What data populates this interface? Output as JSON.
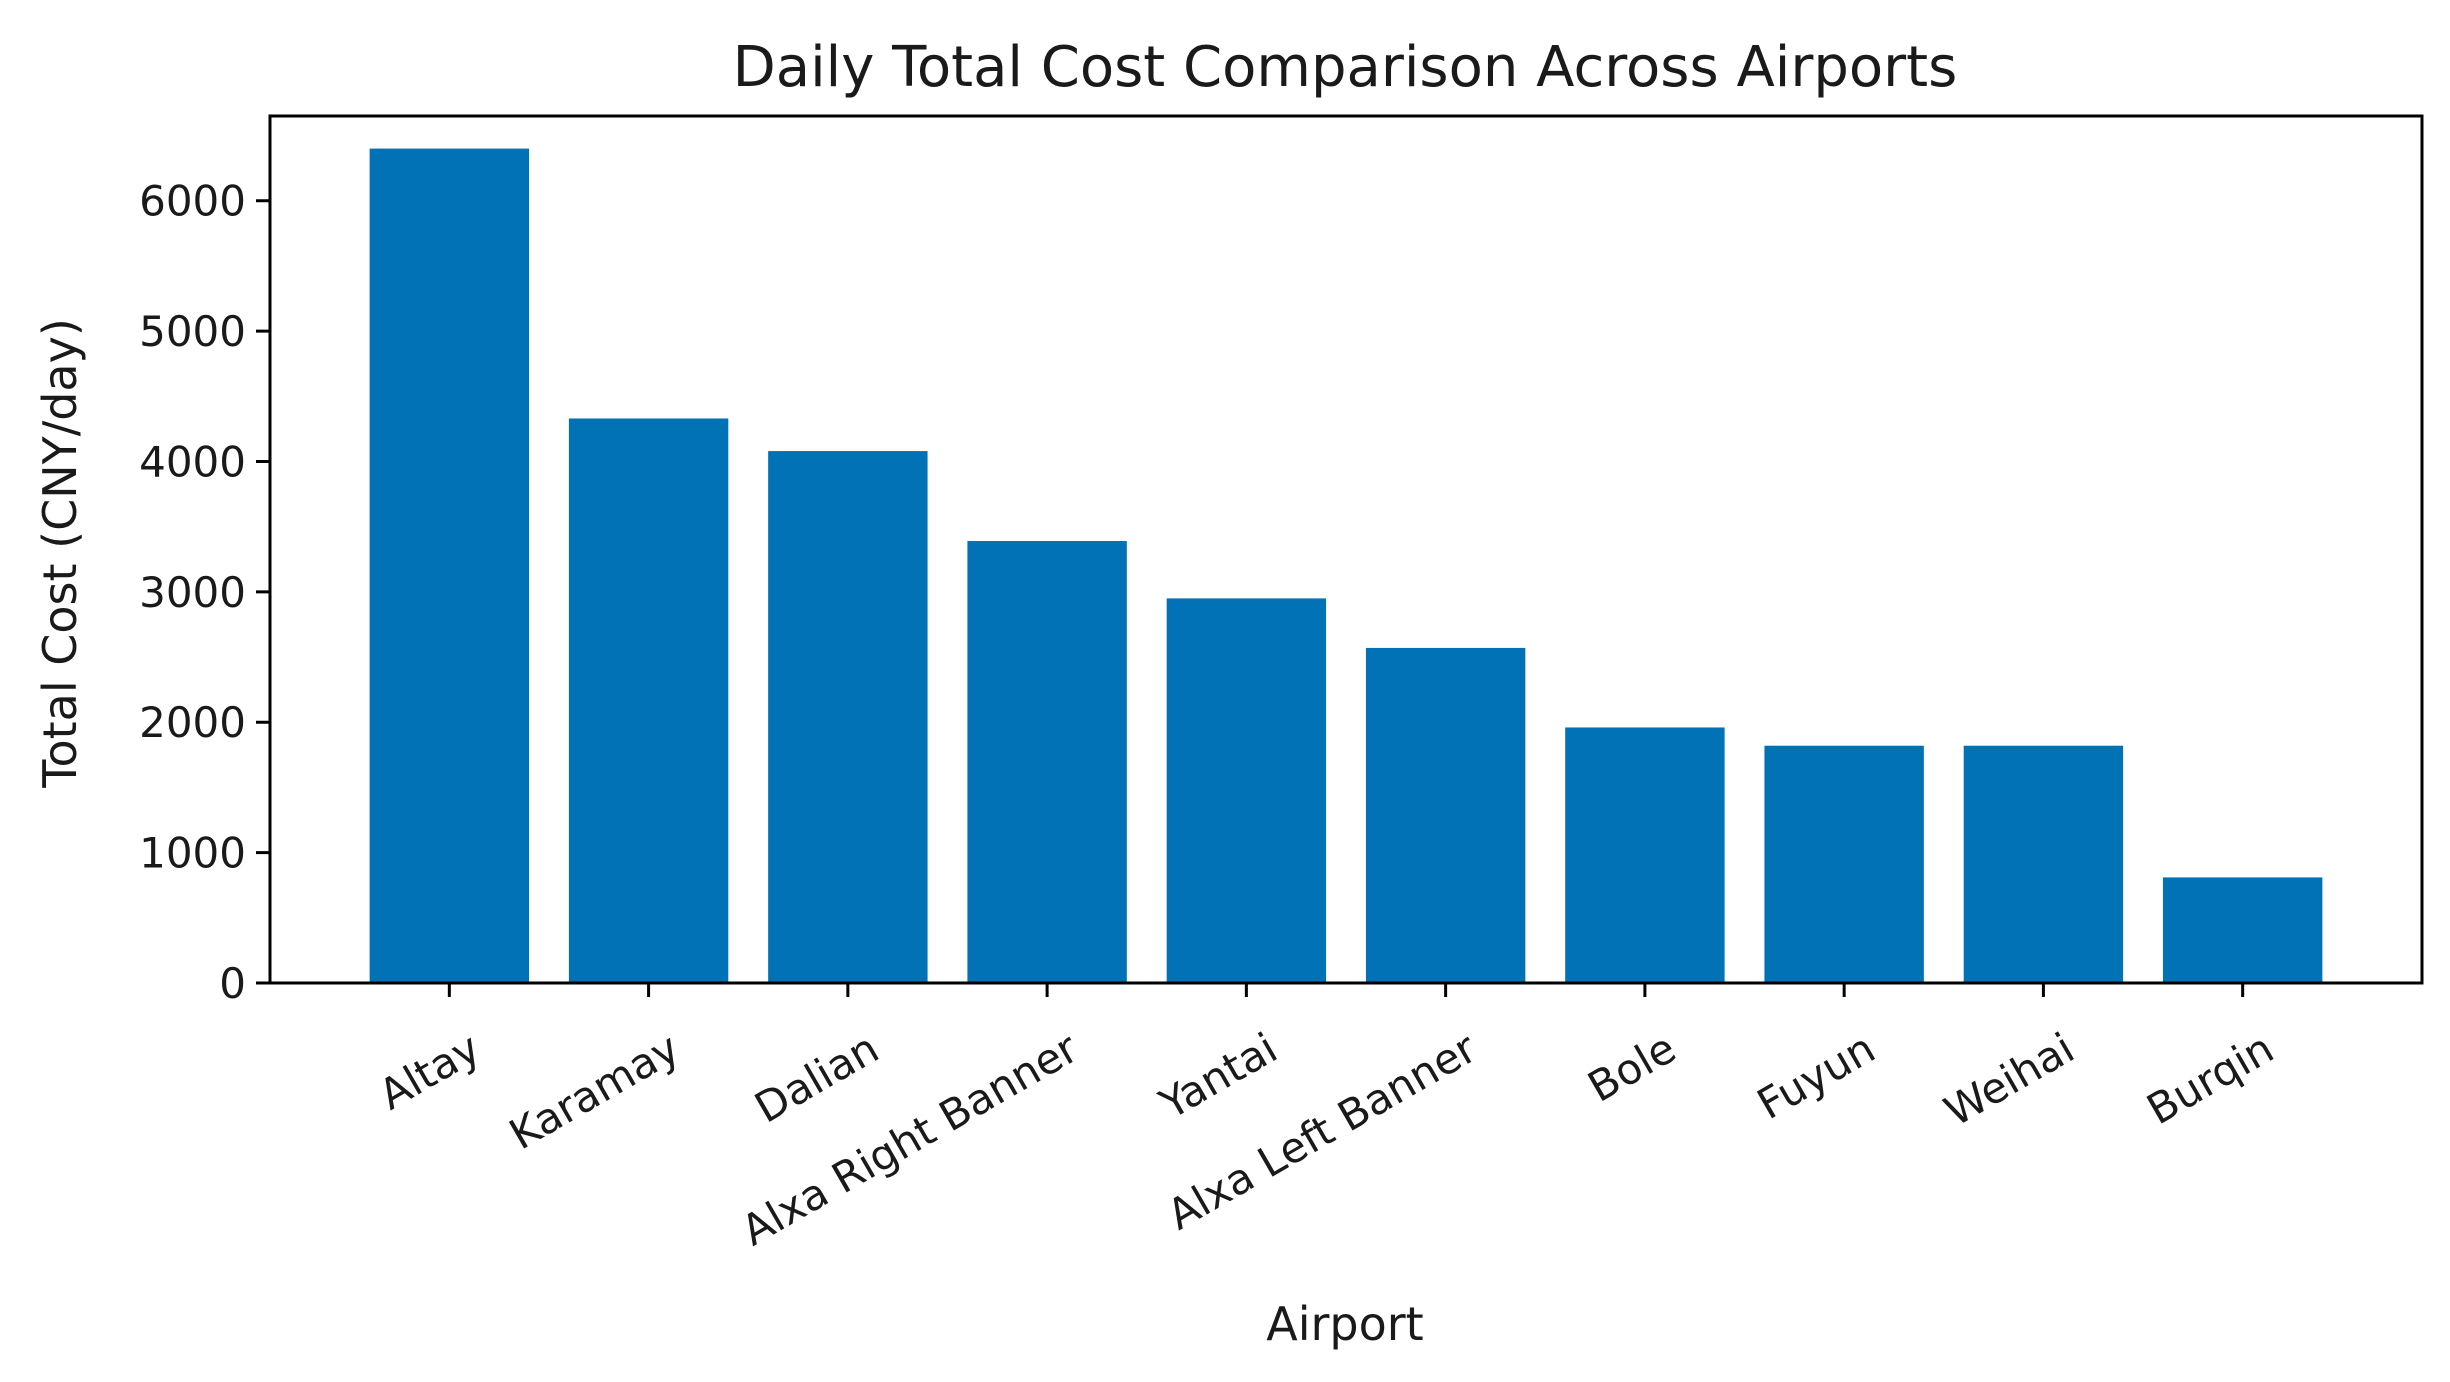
{
  "chart_data": {
    "type": "bar",
    "title": "Daily Total Cost Comparison Across Airports",
    "xlabel": "Airport",
    "ylabel": "Total Cost (CNY/day)",
    "categories": [
      "Altay",
      "Karamay",
      "Dalian",
      "Alxa Right Banner",
      "Yantai",
      "Alxa Left Banner",
      "Bole",
      "Fuyun",
      "Weihai",
      "Burqin"
    ],
    "values": [
      6400,
      4330,
      4080,
      3390,
      2950,
      2570,
      1960,
      1820,
      1820,
      810
    ],
    "ylim": [
      0,
      6650
    ],
    "yticks": [
      0,
      1000,
      2000,
      3000,
      4000,
      5000,
      6000
    ],
    "bar_color": "#0072b5",
    "grid": false,
    "legend": "none",
    "xtick_rotation": 30
  }
}
